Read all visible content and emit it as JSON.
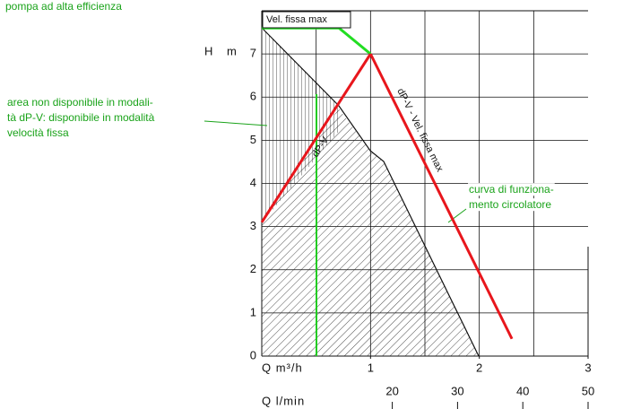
{
  "chart_data": {
    "type": "line",
    "caption": "pompa ad alta efficienza",
    "ylabel": "H m",
    "xlabel": "Q m³/h",
    "x2label": "Q l/min",
    "xlim": [
      0,
      3
    ],
    "xticks": [
      1,
      2,
      3
    ],
    "ylim": [
      0,
      8
    ],
    "yticks": [
      0,
      1,
      2,
      3,
      4,
      5,
      6,
      7
    ],
    "x2lim": [
      0,
      50
    ],
    "x2ticks": [
      20,
      30,
      40,
      50
    ],
    "grid": true,
    "series": [
      {
        "name": "Vel. fissa max",
        "color": "#22dd22",
        "x": [
          0,
          0.71,
          1
        ],
        "values": [
          7.6,
          7.6,
          7
        ]
      },
      {
        "name": "dP-V",
        "color": "#e8161c",
        "x": [
          0,
          1
        ],
        "values": [
          3.1,
          7
        ]
      },
      {
        "name": "dP-V - Vel. fissa max",
        "color": "#e8161c",
        "x": [
          1,
          2.3
        ],
        "values": [
          7,
          0.4
        ]
      }
    ],
    "annotations": [
      {
        "lines": [
          "area non disponibile in modali-",
          "tà dP-V: disponibile in modalità",
          "velocità fissa"
        ]
      },
      {
        "lines": [
          "curva di funziona-",
          "mento circolatore"
        ]
      }
    ]
  }
}
